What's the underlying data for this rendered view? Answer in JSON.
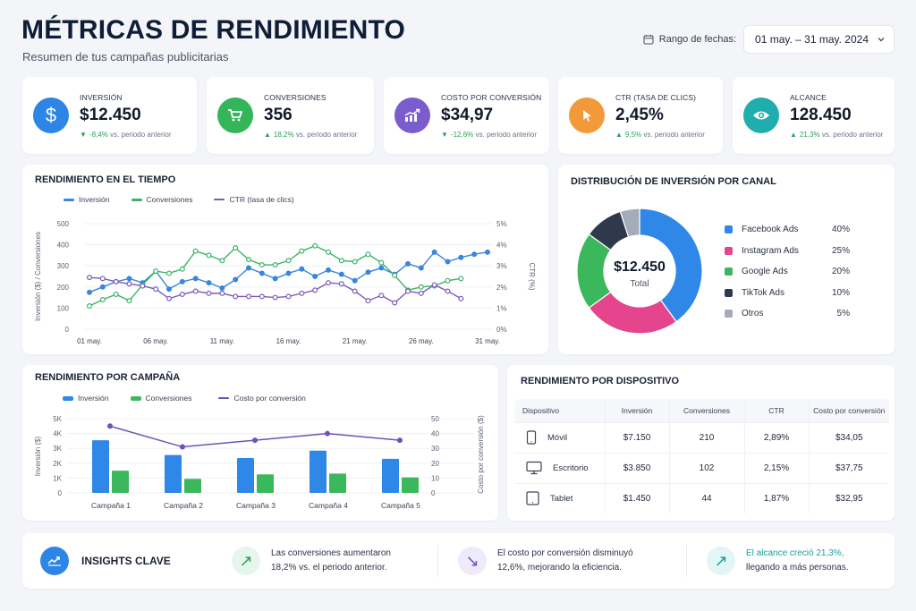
{
  "header": {
    "title": "MÉTRICAS DE RENDIMIENTO",
    "subtitle": "Resumen de tus campañas publicitarias",
    "date_label": "Rango de fechas:",
    "date_value": "01 may. – 31 may. 2024",
    "date_icon": "calendar-icon",
    "dropdown_icon": "chevron-down-icon"
  },
  "kpis": [
    {
      "label": "INVERSIÓN",
      "value": "$12.450",
      "trend": "down",
      "delta": "-8,4%",
      "suffix": "vs. periodo anterior",
      "icon": "dollar-icon",
      "color": "#2d86e6"
    },
    {
      "label": "CONVERSIONES",
      "value": "356",
      "trend": "up",
      "delta": "18,2%",
      "suffix": "vs. periodo anterior",
      "icon": "cart-icon",
      "color": "#34b55a"
    },
    {
      "label": "COSTO POR CONVERSIÓN",
      "value": "$34,97",
      "trend": "down",
      "delta": "-12,6%",
      "suffix": "vs. periodo anterior",
      "icon": "chart-up-icon",
      "color": "#7b5ccc"
    },
    {
      "label": "CTR (TASA DE CLICS)",
      "value": "2,45%",
      "trend": "up",
      "delta": "9,5%",
      "suffix": "vs. periodo anterior",
      "icon": "cursor-icon",
      "color": "#f29a3a"
    },
    {
      "label": "ALCANCE",
      "value": "128.450",
      "trend": "up",
      "delta": "21,3%",
      "suffix": "vs. periodo anterior",
      "icon": "eye-icon",
      "color": "#1fadae"
    }
  ],
  "time_chart": {
    "title": "RENDIMIENTO EN EL TIEMPO",
    "legend": [
      "Inversión",
      "Conversiones",
      "CTR (tasa de clics)"
    ],
    "ylabel_left": "Inversión ($) / Conversiones",
    "ylabel_right": "CTR (%)",
    "left_ticks": [
      "0",
      "100",
      "200",
      "300",
      "400",
      "500"
    ],
    "right_ticks": [
      "0%",
      "1%",
      "2%",
      "3%",
      "4%",
      "5%"
    ],
    "x_ticks": [
      "01 may.",
      "06 may.",
      "11 may.",
      "16 may.",
      "21 may.",
      "26 may.",
      "31 may."
    ]
  },
  "donut": {
    "title": "DISTRIBUCIÓN DE INVERSIÓN POR CANAL",
    "center_value": "$12.450",
    "center_label": "Total",
    "items": [
      {
        "name": "Facebook Ads",
        "pct": "40%",
        "value": 40,
        "color": "#2f88e8"
      },
      {
        "name": "Instagram Ads",
        "pct": "25%",
        "value": 25,
        "color": "#e5458c"
      },
      {
        "name": "Google Ads",
        "pct": "20%",
        "value": 20,
        "color": "#3cb85c"
      },
      {
        "name": "TikTok Ads",
        "pct": "10%",
        "value": 10,
        "color": "#2e3a4c"
      },
      {
        "name": "Otros",
        "pct": "5%",
        "value": 5,
        "color": "#a3acb8"
      }
    ]
  },
  "campaign_chart": {
    "title": "RENDIMIENTO POR CAMPAÑA",
    "legend": [
      "Inversión",
      "Conversiones",
      "Costo por conversión"
    ],
    "ylabel_left": "Inversión ($)",
    "ylabel_right": "Costo por conversión ($)",
    "left_ticks": [
      "0",
      "1K",
      "2K",
      "3K",
      "4K",
      "5K"
    ],
    "right_ticks": [
      "0",
      "10",
      "20",
      "30",
      "40",
      "50"
    ]
  },
  "device_table": {
    "title": "RENDIMIENTO POR DISPOSITIVO",
    "columns": [
      "Dispositivo",
      "Inversión",
      "Conversiones",
      "CTR",
      "Costo por conversión"
    ],
    "rows": [
      {
        "device": "Móvil",
        "icon": "mobile-icon",
        "inversion": "$7.150",
        "conversiones": "210",
        "ctr": "2,89%",
        "cpc": "$34,05"
      },
      {
        "device": "Escritorio",
        "icon": "desktop-icon",
        "inversion": "$3.850",
        "conversiones": "102",
        "ctr": "2,15%",
        "cpc": "$37,75"
      },
      {
        "device": "Tablet",
        "icon": "tablet-icon",
        "inversion": "$1.450",
        "conversiones": "44",
        "ctr": "1,87%",
        "cpc": "$32,95"
      }
    ]
  },
  "insights": {
    "title": "INSIGHTS CLAVE",
    "items": [
      {
        "line1": "Las conversiones aumentaron",
        "line2": "18,2% vs. el periodo anterior.",
        "icon": "arrow-up-right-icon",
        "arrow": "↗",
        "fg": "#2ea05a",
        "bg": "#e6f6ec"
      },
      {
        "line1": "El costo por conversión disminuyó",
        "line2": "12,6%, mejorando la eficiencia.",
        "icon": "arrow-down-right-icon",
        "arrow": "↘",
        "fg": "#6a4fc4",
        "bg": "#eeeafa"
      },
      {
        "line1": "El alcance creció 21,3%,",
        "line2": "llegando a más personas.",
        "icon": "arrow-up-right-icon",
        "arrow": "↗",
        "fg": "#18a09c",
        "bg": "#e3f5f4"
      }
    ]
  },
  "chart_data": [
    {
      "type": "line",
      "title": "RENDIMIENTO EN EL TIEMPO",
      "xlabel": "",
      "ylabel": "Inversión ($) / Conversiones",
      "y2label": "CTR (%)",
      "ylim": [
        0,
        500
      ],
      "y2lim": [
        0,
        5
      ],
      "x": [
        "01 may.",
        "02 may.",
        "03 may.",
        "04 may.",
        "05 may.",
        "06 may.",
        "07 may.",
        "08 may.",
        "09 may.",
        "10 may.",
        "11 may.",
        "12 may.",
        "13 may.",
        "14 may.",
        "15 may.",
        "16 may.",
        "17 may.",
        "18 may.",
        "19 may.",
        "20 may.",
        "21 may.",
        "22 may.",
        "23 may.",
        "24 may.",
        "25 may.",
        "26 may.",
        "27 may.",
        "28 may.",
        "29 may.",
        "30 may.",
        "31 may."
      ],
      "grid": true,
      "legend_position": "top",
      "series": [
        {
          "name": "Inversión",
          "axis": "left",
          "color": "#3a86dc",
          "values": [
            175,
            200,
            225,
            240,
            220,
            275,
            190,
            225,
            240,
            220,
            195,
            235,
            290,
            265,
            240,
            265,
            285,
            250,
            280,
            260,
            230,
            270,
            290,
            260,
            310,
            290,
            365,
            320,
            340,
            355,
            365
          ]
        },
        {
          "name": "Conversiones",
          "axis": "left",
          "color": "#3cb366",
          "values": [
            110,
            140,
            165,
            135,
            210,
            275,
            265,
            285,
            370,
            350,
            325,
            385,
            330,
            305,
            305,
            325,
            370,
            395,
            365,
            325,
            320,
            355,
            315,
            255,
            185,
            200,
            205,
            230,
            240,
            null,
            null
          ]
        },
        {
          "name": "CTR (tasa de clics)",
          "axis": "right",
          "color": "#7a5cb8",
          "values": [
            2.45,
            2.4,
            2.25,
            2.15,
            2.05,
            1.9,
            1.45,
            1.65,
            1.8,
            1.7,
            1.7,
            1.55,
            1.55,
            1.55,
            1.5,
            1.55,
            1.7,
            1.85,
            2.2,
            2.15,
            1.8,
            1.35,
            1.6,
            1.25,
            1.8,
            1.7,
            2.1,
            1.8,
            1.45,
            null,
            null
          ]
        }
      ]
    },
    {
      "type": "pie",
      "title": "DISTRIBUCIÓN DE INVERSIÓN POR CANAL",
      "categories": [
        "Facebook Ads",
        "Instagram Ads",
        "Google Ads",
        "TikTok Ads",
        "Otros"
      ],
      "values": [
        40,
        25,
        20,
        10,
        5
      ],
      "center_text": "$12.450 Total",
      "legend_position": "right"
    },
    {
      "type": "bar",
      "title": "RENDIMIENTO POR CAMPAÑA",
      "categories": [
        "Campaña 1",
        "Campaña 2",
        "Campaña 3",
        "Campaña 4",
        "Campaña 5"
      ],
      "ylabel": "Inversión ($)",
      "y2label": "Costo por conversión ($)",
      "ylim": [
        0,
        5000
      ],
      "y2lim": [
        0,
        50
      ],
      "grid": true,
      "legend_position": "top",
      "series": [
        {
          "name": "Inversión",
          "type": "bar",
          "axis": "left",
          "color": "#2f88e8",
          "values": [
            3550,
            2550,
            2350,
            2850,
            2300
          ]
        },
        {
          "name": "Conversiones",
          "type": "bar",
          "axis": "left",
          "color": "#3cb85c",
          "values": [
            1500,
            950,
            1250,
            1300,
            1050
          ]
        },
        {
          "name": "Costo por conversión",
          "type": "line",
          "axis": "right",
          "color": "#6f52b8",
          "values": [
            45,
            31,
            35.5,
            40,
            35.5
          ]
        }
      ]
    }
  ]
}
